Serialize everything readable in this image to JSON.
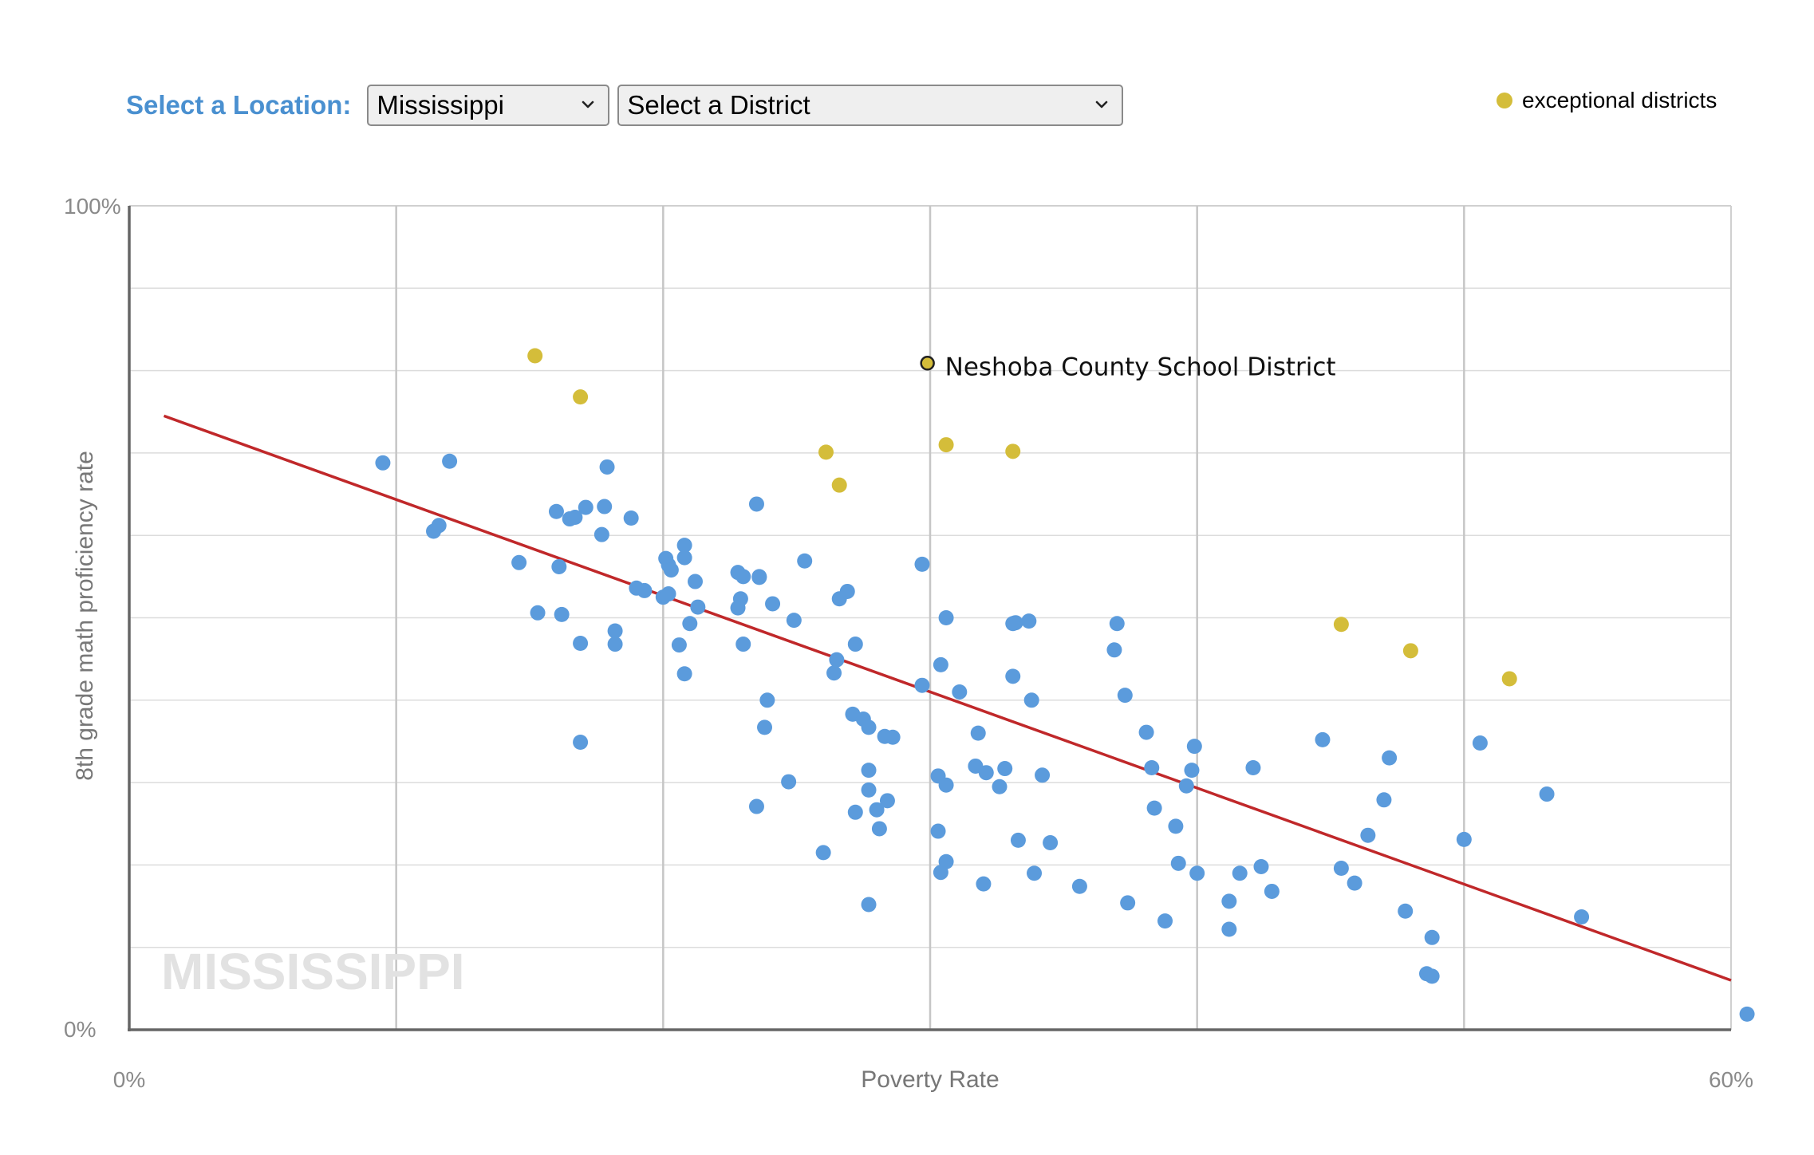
{
  "controls": {
    "location_label": "Select a Location:",
    "state_value": "Mississippi",
    "district_value": "Select a District"
  },
  "colors": {
    "regular": "#5b9bdc",
    "exceptional": "#d4bd3a",
    "trend": "#c0282a",
    "label": "#4a90d0"
  },
  "chart_data": {
    "type": "scatter",
    "xlabel": "Poverty Rate",
    "ylabel": "8th grade math proficiency rate",
    "xlim": [
      0,
      60
    ],
    "ylim": [
      0,
      100
    ],
    "x_ticks": [
      "0%",
      "60%"
    ],
    "y_ticks": [
      "0%",
      "100%"
    ],
    "grid": true,
    "legend": {
      "label": "exceptional districts",
      "position": "top-right"
    },
    "watermark": "MISSISSIPPI",
    "annotation": {
      "label": "Neshoba County School District",
      "x": 29.9,
      "y": 80.9
    },
    "trendline": {
      "x": [
        1.3,
        60
      ],
      "y": [
        74.5,
        6.0
      ]
    },
    "exceptional": [
      [
        15.2,
        81.8
      ],
      [
        16.9,
        76.8
      ],
      [
        26.1,
        70.1
      ],
      [
        26.6,
        66.1
      ],
      [
        30.6,
        71.0
      ],
      [
        33.1,
        70.2
      ],
      [
        45.4,
        49.2
      ],
      [
        48.0,
        46.0
      ],
      [
        51.7,
        42.6
      ]
    ],
    "points": [
      [
        9.5,
        68.8
      ],
      [
        12.0,
        69.0
      ],
      [
        11.6,
        61.2
      ],
      [
        11.4,
        60.5
      ],
      [
        14.6,
        56.7
      ],
      [
        16.0,
        62.9
      ],
      [
        16.5,
        62.0
      ],
      [
        16.7,
        62.2
      ],
      [
        17.1,
        63.4
      ],
      [
        17.8,
        63.5
      ],
      [
        17.9,
        68.3
      ],
      [
        17.7,
        60.1
      ],
      [
        18.8,
        62.1
      ],
      [
        15.3,
        50.6
      ],
      [
        16.1,
        56.2
      ],
      [
        16.2,
        50.4
      ],
      [
        16.9,
        46.9
      ],
      [
        18.2,
        48.4
      ],
      [
        18.2,
        46.8
      ],
      [
        16.9,
        34.9
      ],
      [
        19.0,
        53.6
      ],
      [
        19.3,
        53.3
      ],
      [
        20.1,
        57.2
      ],
      [
        20.2,
        56.4
      ],
      [
        20.3,
        55.8
      ],
      [
        20.0,
        52.5
      ],
      [
        20.2,
        52.9
      ],
      [
        20.8,
        58.8
      ],
      [
        20.8,
        57.3
      ],
      [
        21.2,
        54.4
      ],
      [
        21.3,
        51.3
      ],
      [
        21.0,
        49.3
      ],
      [
        20.6,
        46.7
      ],
      [
        20.8,
        43.2
      ],
      [
        22.8,
        55.5
      ],
      [
        23.0,
        55.0
      ],
      [
        23.6,
        54.9
      ],
      [
        23.6,
        55.0
      ],
      [
        22.9,
        52.3
      ],
      [
        22.8,
        51.2
      ],
      [
        23.0,
        46.8
      ],
      [
        23.5,
        63.8
      ],
      [
        24.1,
        51.7
      ],
      [
        25.3,
        56.9
      ],
      [
        24.9,
        49.7
      ],
      [
        23.9,
        40.0
      ],
      [
        23.8,
        36.7
      ],
      [
        24.7,
        30.1
      ],
      [
        23.5,
        27.1
      ],
      [
        26.6,
        52.3
      ],
      [
        26.9,
        53.2
      ],
      [
        26.5,
        44.9
      ],
      [
        26.4,
        43.3
      ],
      [
        29.7,
        56.5
      ],
      [
        27.1,
        38.3
      ],
      [
        27.5,
        37.7
      ],
      [
        27.7,
        36.7
      ],
      [
        28.3,
        35.6
      ],
      [
        28.6,
        35.5
      ],
      [
        27.2,
        46.8
      ],
      [
        27.7,
        31.5
      ],
      [
        27.7,
        29.1
      ],
      [
        27.2,
        26.4
      ],
      [
        28.0,
        26.7
      ],
      [
        28.1,
        24.4
      ],
      [
        28.4,
        27.8
      ],
      [
        26.0,
        21.5
      ],
      [
        27.7,
        15.2
      ],
      [
        30.6,
        50.0
      ],
      [
        30.4,
        44.3
      ],
      [
        29.7,
        41.8
      ],
      [
        31.1,
        41.0
      ],
      [
        31.8,
        36.0
      ],
      [
        30.3,
        30.8
      ],
      [
        30.6,
        29.7
      ],
      [
        31.7,
        32.0
      ],
      [
        32.1,
        31.2
      ],
      [
        32.8,
        31.7
      ],
      [
        32.6,
        29.5
      ],
      [
        30.3,
        24.1
      ],
      [
        30.6,
        20.4
      ],
      [
        30.4,
        19.1
      ],
      [
        32.0,
        17.7
      ],
      [
        33.2,
        49.4
      ],
      [
        33.1,
        49.3
      ],
      [
        33.7,
        49.6
      ],
      [
        33.1,
        42.9
      ],
      [
        33.8,
        40.0
      ],
      [
        34.2,
        30.9
      ],
      [
        33.3,
        23.0
      ],
      [
        34.5,
        22.7
      ],
      [
        33.9,
        19.0
      ],
      [
        35.6,
        17.4
      ],
      [
        37.0,
        49.3
      ],
      [
        36.9,
        46.1
      ],
      [
        37.3,
        40.6
      ],
      [
        37.4,
        15.4
      ],
      [
        38.1,
        36.1
      ],
      [
        38.3,
        31.8
      ],
      [
        38.4,
        26.9
      ],
      [
        38.8,
        13.2
      ],
      [
        39.2,
        24.7
      ],
      [
        39.6,
        29.6
      ],
      [
        39.8,
        31.5
      ],
      [
        39.9,
        34.4
      ],
      [
        39.3,
        20.2
      ],
      [
        40.0,
        19.0
      ],
      [
        41.2,
        15.6
      ],
      [
        41.2,
        12.2
      ],
      [
        41.6,
        19.0
      ],
      [
        42.1,
        31.8
      ],
      [
        42.4,
        19.8
      ],
      [
        42.8,
        16.8
      ],
      [
        44.7,
        35.2
      ],
      [
        45.4,
        19.6
      ],
      [
        45.9,
        17.8
      ],
      [
        46.4,
        23.6
      ],
      [
        47.0,
        27.9
      ],
      [
        47.2,
        33.0
      ],
      [
        47.8,
        14.4
      ],
      [
        48.6,
        6.8
      ],
      [
        48.8,
        6.5
      ],
      [
        48.8,
        11.2
      ],
      [
        50.0,
        23.1
      ],
      [
        50.6,
        34.8
      ],
      [
        53.1,
        28.6
      ],
      [
        54.4,
        13.7
      ],
      [
        60.6,
        1.9
      ]
    ]
  }
}
